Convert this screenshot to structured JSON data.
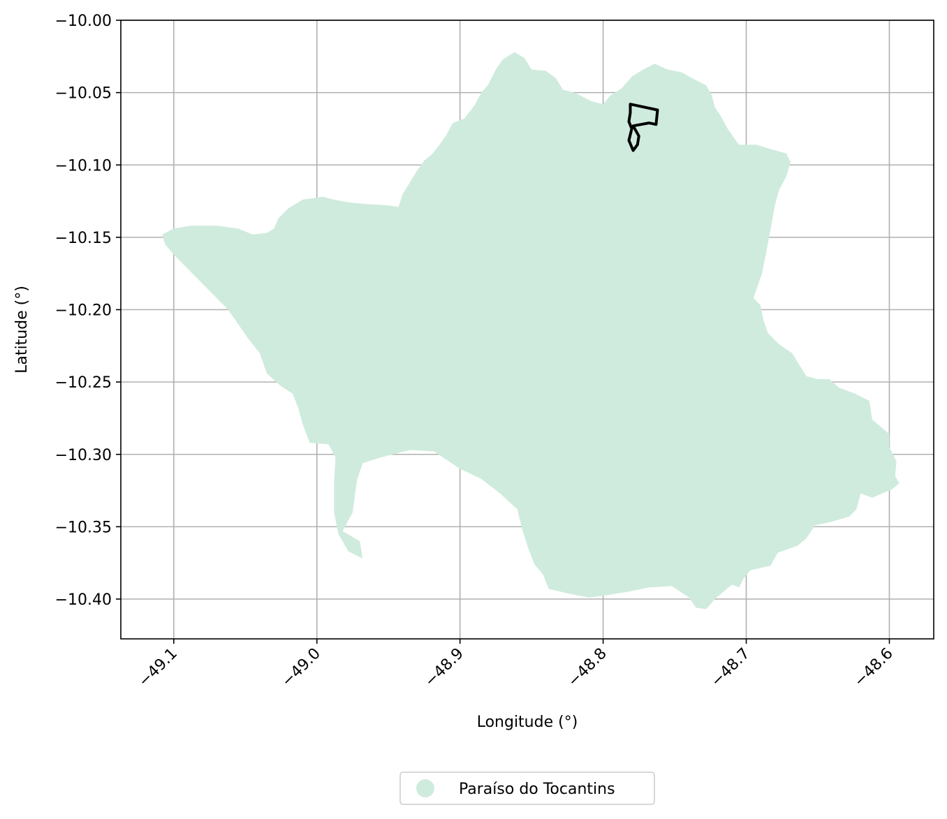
{
  "chart_data": {
    "type": "map",
    "xlabel": "Longitude (°)",
    "ylabel": "Latitude (°)",
    "xlim": [
      -49.137,
      -48.569
    ],
    "ylim": [
      -10.4275,
      -10.0
    ],
    "xticks": [
      -49.1,
      -49.0,
      -48.9,
      -48.8,
      -48.7,
      -48.6
    ],
    "xtick_labels": [
      "−49.1",
      "−49.0",
      "−48.9",
      "−48.8",
      "−48.7",
      "−48.6"
    ],
    "yticks": [
      -10.0,
      -10.05,
      -10.1,
      -10.15,
      -10.2,
      -10.25,
      -10.3,
      -10.35,
      -10.4
    ],
    "ytick_labels": [
      "−10.00",
      "−10.05",
      "−10.10",
      "−10.15",
      "−10.20",
      "−10.25",
      "−10.30",
      "−10.35",
      "−10.40"
    ],
    "grid": true,
    "legend_position": "bottom-center",
    "legend": [
      {
        "name": "Paraíso do Tocantins",
        "color": "#cfebdd"
      }
    ],
    "municipality_boundary": [
      [
        -49.108,
        -10.148
      ],
      [
        -49.1,
        -10.144
      ],
      [
        -49.088,
        -10.142
      ],
      [
        -49.07,
        -10.142
      ],
      [
        -49.055,
        -10.144
      ],
      [
        -49.045,
        -10.148
      ],
      [
        -49.035,
        -10.147
      ],
      [
        -49.03,
        -10.144
      ],
      [
        -49.027,
        -10.137
      ],
      [
        -49.02,
        -10.13
      ],
      [
        -49.01,
        -10.124
      ],
      [
        -48.996,
        -10.122
      ],
      [
        -48.988,
        -10.124
      ],
      [
        -48.977,
        -10.126
      ],
      [
        -48.965,
        -10.127
      ],
      [
        -48.95,
        -10.128
      ],
      [
        -48.943,
        -10.129
      ],
      [
        -48.94,
        -10.12
      ],
      [
        -48.935,
        -10.112
      ],
      [
        -48.93,
        -10.104
      ],
      [
        -48.925,
        -10.097
      ],
      [
        -48.92,
        -10.093
      ],
      [
        -48.915,
        -10.087
      ],
      [
        -48.91,
        -10.08
      ],
      [
        -48.905,
        -10.071
      ],
      [
        -48.897,
        -10.068
      ],
      [
        -48.89,
        -10.059
      ],
      [
        -48.885,
        -10.05
      ],
      [
        -48.88,
        -10.044
      ],
      [
        -48.875,
        -10.034
      ],
      [
        -48.87,
        -10.027
      ],
      [
        -48.862,
        -10.022
      ],
      [
        -48.855,
        -10.026
      ],
      [
        -48.85,
        -10.034
      ],
      [
        -48.84,
        -10.035
      ],
      [
        -48.833,
        -10.04
      ],
      [
        -48.828,
        -10.048
      ],
      [
        -48.82,
        -10.05
      ],
      [
        -48.808,
        -10.056
      ],
      [
        -48.8,
        -10.058
      ],
      [
        -48.795,
        -10.052
      ],
      [
        -48.787,
        -10.047
      ],
      [
        -48.78,
        -10.039
      ],
      [
        -48.772,
        -10.034
      ],
      [
        -48.764,
        -10.03
      ],
      [
        -48.755,
        -10.034
      ],
      [
        -48.745,
        -10.036
      ],
      [
        -48.736,
        -10.041
      ],
      [
        -48.728,
        -10.045
      ],
      [
        -48.724,
        -10.052
      ],
      [
        -48.722,
        -10.06
      ],
      [
        -48.718,
        -10.066
      ],
      [
        -48.713,
        -10.075
      ],
      [
        -48.708,
        -10.082
      ],
      [
        -48.705,
        -10.086
      ],
      [
        -48.693,
        -10.086
      ],
      [
        -48.683,
        -10.089
      ],
      [
        -48.672,
        -10.092
      ],
      [
        -48.669,
        -10.098
      ],
      [
        -48.672,
        -10.108
      ],
      [
        -48.677,
        -10.117
      ],
      [
        -48.68,
        -10.128
      ],
      [
        -48.684,
        -10.15
      ],
      [
        -48.689,
        -10.175
      ],
      [
        -48.695,
        -10.192
      ],
      [
        -48.69,
        -10.197
      ],
      [
        -48.688,
        -10.207
      ],
      [
        -48.685,
        -10.216
      ],
      [
        -48.677,
        -10.224
      ],
      [
        -48.668,
        -10.23
      ],
      [
        -48.658,
        -10.246
      ],
      [
        -48.65,
        -10.248
      ],
      [
        -48.642,
        -10.248
      ],
      [
        -48.635,
        -10.254
      ],
      [
        -48.624,
        -10.258
      ],
      [
        -48.614,
        -10.263
      ],
      [
        -48.612,
        -10.276
      ],
      [
        -48.6,
        -10.286
      ],
      [
        -48.6,
        -10.295
      ],
      [
        -48.595,
        -10.305
      ],
      [
        -48.596,
        -10.315
      ],
      [
        -48.593,
        -10.32
      ],
      [
        -48.598,
        -10.324
      ],
      [
        -48.612,
        -10.33
      ],
      [
        -48.62,
        -10.327
      ],
      [
        -48.623,
        -10.338
      ],
      [
        -48.628,
        -10.343
      ],
      [
        -48.642,
        -10.347
      ],
      [
        -48.652,
        -10.349
      ],
      [
        -48.658,
        -10.358
      ],
      [
        -48.664,
        -10.363
      ],
      [
        -48.678,
        -10.368
      ],
      [
        -48.683,
        -10.377
      ],
      [
        -48.697,
        -10.38
      ],
      [
        -48.702,
        -10.386
      ],
      [
        -48.705,
        -10.392
      ],
      [
        -48.71,
        -10.39
      ],
      [
        -48.722,
        -10.4
      ],
      [
        -48.728,
        -10.407
      ],
      [
        -48.735,
        -10.406
      ],
      [
        -48.74,
        -10.399
      ],
      [
        -48.752,
        -10.391
      ],
      [
        -48.768,
        -10.392
      ],
      [
        -48.783,
        -10.395
      ],
      [
        -48.795,
        -10.397
      ],
      [
        -48.81,
        -10.399
      ],
      [
        -48.825,
        -10.396
      ],
      [
        -48.838,
        -10.393
      ],
      [
        -48.842,
        -10.383
      ],
      [
        -48.848,
        -10.376
      ],
      [
        -48.853,
        -10.363
      ],
      [
        -48.857,
        -10.35
      ],
      [
        -48.86,
        -10.338
      ],
      [
        -48.872,
        -10.327
      ],
      [
        -48.885,
        -10.317
      ],
      [
        -48.9,
        -10.31
      ],
      [
        -48.918,
        -10.298
      ],
      [
        -48.935,
        -10.297
      ],
      [
        -48.955,
        -10.302
      ],
      [
        -48.968,
        -10.306
      ],
      [
        -48.972,
        -10.318
      ],
      [
        -48.975,
        -10.34
      ],
      [
        -48.982,
        -10.353
      ],
      [
        -48.97,
        -10.36
      ],
      [
        -48.968,
        -10.372
      ],
      [
        -48.978,
        -10.367
      ],
      [
        -48.985,
        -10.355
      ],
      [
        -48.988,
        -10.34
      ],
      [
        -48.988,
        -10.32
      ],
      [
        -48.987,
        -10.302
      ],
      [
        -48.992,
        -10.293
      ],
      [
        -49.005,
        -10.292
      ],
      [
        -49.01,
        -10.279
      ],
      [
        -49.013,
        -10.268
      ],
      [
        -49.017,
        -10.258
      ],
      [
        -49.025,
        -10.253
      ],
      [
        -49.035,
        -10.244
      ],
      [
        -49.04,
        -10.23
      ],
      [
        -49.048,
        -10.22
      ],
      [
        -49.055,
        -10.21
      ],
      [
        -49.062,
        -10.2
      ],
      [
        -49.075,
        -10.187
      ],
      [
        -49.09,
        -10.172
      ],
      [
        -49.1,
        -10.162
      ],
      [
        -49.106,
        -10.155
      ]
    ],
    "urban_area_outline": [
      [
        -48.781,
        -10.058
      ],
      [
        -48.762,
        -10.062
      ],
      [
        -48.763,
        -10.072
      ],
      [
        -48.768,
        -10.071
      ],
      [
        -48.779,
        -10.073
      ],
      [
        -48.775,
        -10.08
      ],
      [
        -48.776,
        -10.086
      ],
      [
        -48.779,
        -10.09
      ],
      [
        -48.782,
        -10.083
      ],
      [
        -48.78,
        -10.075
      ],
      [
        -48.782,
        -10.07
      ],
      [
        -48.781,
        -10.064
      ]
    ]
  }
}
